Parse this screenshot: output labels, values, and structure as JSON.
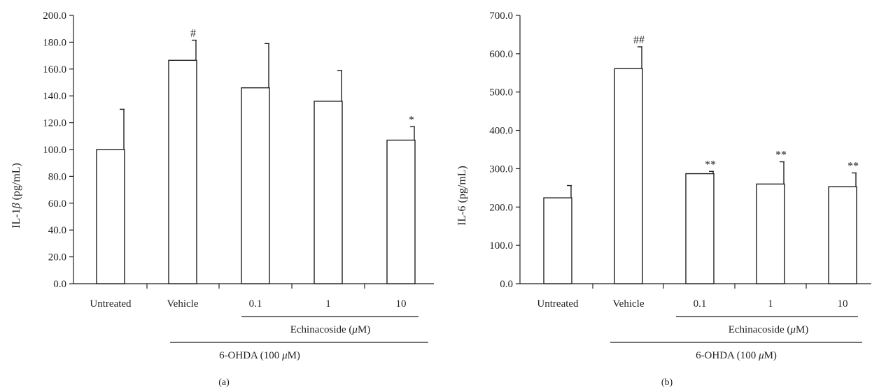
{
  "chart_data": [
    {
      "panel_label": "(a)",
      "type": "bar",
      "ylabel": "IL-1β (pg/mL)",
      "ylim": [
        0,
        200
      ],
      "yticks": [
        "0.0",
        "20.0",
        "40.0",
        "60.0",
        "80.0",
        "100.0",
        "120.0",
        "140.0",
        "160.0",
        "180.0",
        "200.0"
      ],
      "categories": [
        "Untreated",
        "Vehicle",
        "0.1",
        "1",
        "10"
      ],
      "values": [
        100.0,
        166.5,
        146.0,
        136.0,
        107.0
      ],
      "errors": [
        30.0,
        15.0,
        33.0,
        23.0,
        10.0
      ],
      "significance": [
        "",
        "#",
        "",
        "",
        "*"
      ],
      "bracket_inner": "Echinacoside (μM)",
      "bracket_outer": "6-OHDA (100 μM)"
    },
    {
      "panel_label": "(b)",
      "type": "bar",
      "ylabel": "IL-6 (pg/mL)",
      "ylim": [
        0,
        700
      ],
      "yticks": [
        "0.0",
        "100.0",
        "200.0",
        "300.0",
        "400.0",
        "500.0",
        "600.0",
        "700.0"
      ],
      "categories": [
        "Untreated",
        "Vehicle",
        "0.1",
        "1",
        "10"
      ],
      "values": [
        224.0,
        561.0,
        287.0,
        260.0,
        253.0
      ],
      "errors": [
        32.0,
        57.0,
        6.0,
        58.0,
        36.0
      ],
      "significance": [
        "",
        "##",
        "**",
        "**",
        "**"
      ],
      "bracket_inner": "Echinacoside (μM)",
      "bracket_outer": "6-OHDA (100 μM)"
    }
  ]
}
